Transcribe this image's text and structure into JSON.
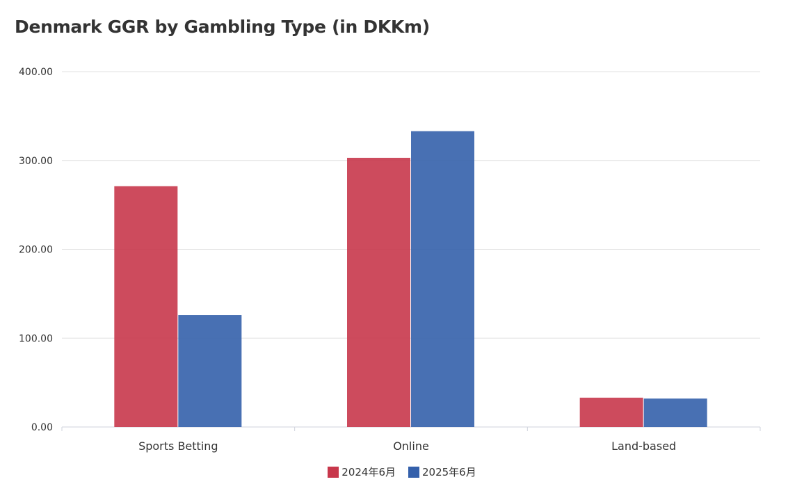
{
  "chart_data": {
    "type": "bar",
    "title": "Denmark GGR by Gambling Type (in DKKm)",
    "categories": [
      "Sports Betting",
      "Online",
      "Land-based"
    ],
    "series": [
      {
        "name": "2024年6月",
        "color": "#c8374b",
        "values": [
          271,
          303,
          33
        ]
      },
      {
        "name": "2025年6月",
        "color": "#3460ab",
        "values": [
          126,
          333,
          32
        ]
      }
    ],
    "ylim": [
      0,
      400
    ],
    "yticks": [
      "0.00",
      "100.00",
      "200.00",
      "300.00",
      "400.00"
    ],
    "grid": true,
    "legend_position": "bottom"
  }
}
